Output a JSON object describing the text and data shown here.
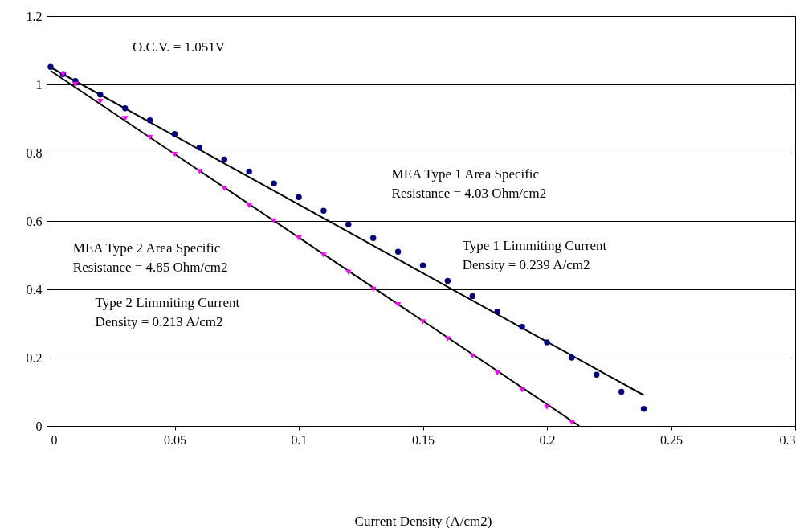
{
  "chart_data": {
    "type": "scatter",
    "xlabel": "Current Density (A/cm2)",
    "xlim": [
      0,
      0.3
    ],
    "xticks": [
      0,
      0.05,
      0.1,
      0.15,
      0.2,
      0.25,
      0.3
    ],
    "ylim": [
      0,
      1.2
    ],
    "yticks": [
      0,
      0.2,
      0.4,
      0.6,
      0.8,
      1,
      1.2
    ],
    "grid": "y",
    "series": [
      {
        "marker": "circle",
        "color": "#000080",
        "x": [
          0,
          0.005,
          0.01,
          0.02,
          0.03,
          0.04,
          0.05,
          0.06,
          0.07,
          0.08,
          0.09,
          0.1,
          0.11,
          0.12,
          0.13,
          0.14,
          0.15,
          0.16,
          0.17,
          0.18,
          0.19,
          0.2,
          0.21,
          0.22,
          0.23,
          0.239
        ],
        "values": [
          1.051,
          1.03,
          1.01,
          0.97,
          0.93,
          0.895,
          0.855,
          0.815,
          0.78,
          0.745,
          0.71,
          0.67,
          0.63,
          0.59,
          0.55,
          0.51,
          0.47,
          0.425,
          0.38,
          0.335,
          0.29,
          0.245,
          0.2,
          0.15,
          0.1,
          0.05
        ]
      },
      {
        "marker": "triangle",
        "color": "#ff00ff",
        "x": [
          0.005,
          0.01,
          0.02,
          0.03,
          0.04,
          0.05,
          0.06,
          0.07,
          0.08,
          0.09,
          0.1,
          0.11,
          0.12,
          0.13,
          0.14,
          0.15,
          0.16,
          0.17,
          0.18,
          0.19,
          0.2,
          0.21
        ],
        "values": [
          1.03,
          1.0,
          0.95,
          0.9,
          0.845,
          0.795,
          0.745,
          0.695,
          0.645,
          0.6,
          0.55,
          0.5,
          0.45,
          0.4,
          0.355,
          0.305,
          0.255,
          0.205,
          0.155,
          0.105,
          0.055,
          0.01
        ]
      },
      {
        "type": "line",
        "color": "#000000",
        "x": [
          0,
          0.239
        ],
        "values": [
          1.05,
          0.09
        ]
      },
      {
        "type": "line",
        "color": "#000000",
        "x": [
          0,
          0.213
        ],
        "values": [
          1.04,
          0
        ]
      }
    ],
    "annotations": [
      "O.C.V. = 1.051V",
      "MEA  Type 1 Area Specific\nResistance = 4.03 Ohm/cm2",
      "Type 1 Limmiting  Current\nDensity = 0.239 A/cm2",
      "MEA  Type 2 Area Specific\nResistance = 4.85 Ohm/cm2",
      "Type 2 Limmiting  Current\nDensity = 0.213 A/cm2"
    ]
  }
}
